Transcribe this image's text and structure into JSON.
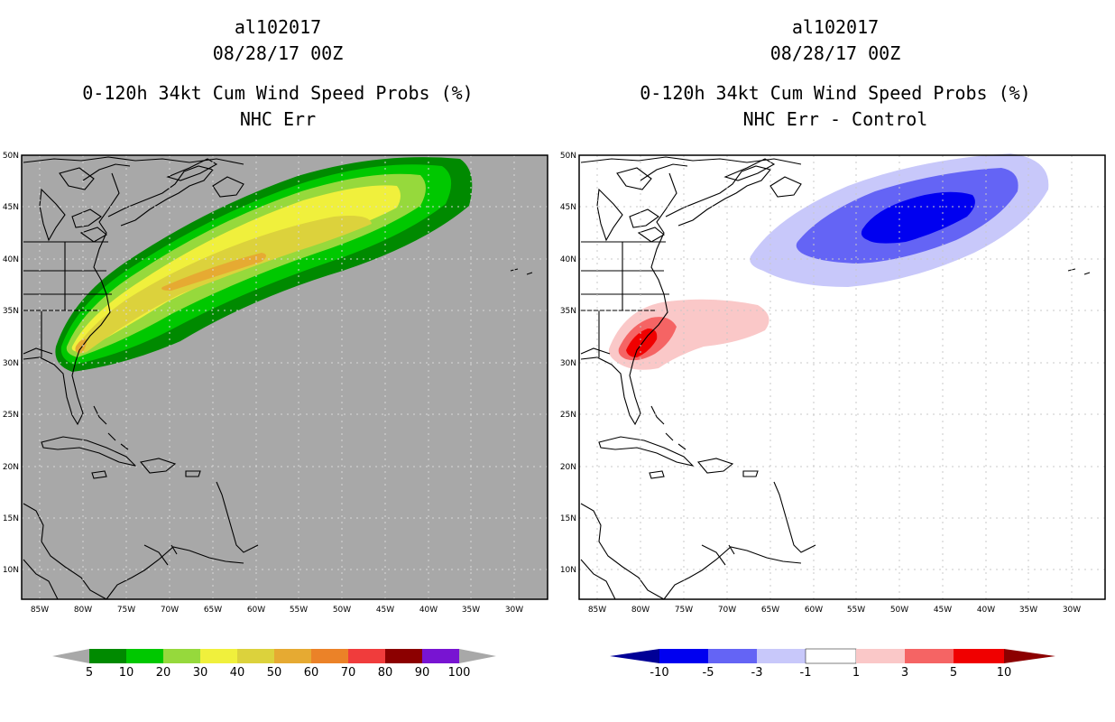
{
  "colors": {
    "land_gray": "#a8a8a8",
    "prob": [
      "#008a00",
      "#00c800",
      "#96d93c",
      "#f0f03c",
      "#dcd23c",
      "#e6aa32",
      "#eb8228",
      "#f03c3c",
      "#8c0000",
      "#7814d2"
    ],
    "diff_neg": [
      "#000096",
      "#0000f0",
      "#6464f5",
      "#c8c8fa"
    ],
    "diff_pos": [
      "#fac8c8",
      "#f56464",
      "#f00000",
      "#8c0000"
    ]
  },
  "left_panel": {
    "title_line1": "al102017",
    "title_line2": "08/28/17 00Z",
    "title_line3": "0-120h 34kt Cum Wind Speed Probs (%)",
    "title_line4": "NHC Err",
    "colorbar_labels": [
      "5",
      "10",
      "20",
      "30",
      "40",
      "50",
      "60",
      "70",
      "80",
      "90",
      "100"
    ]
  },
  "right_panel": {
    "title_line1": "al102017",
    "title_line2": "08/28/17 00Z",
    "title_line3": "0-120h 34kt Cum Wind Speed Probs (%)",
    "title_line4": "NHC Err - Control",
    "colorbar_labels": [
      "-10",
      "-5",
      "-3",
      "-1",
      "1",
      "3",
      "5",
      "10"
    ]
  },
  "map": {
    "lat_labels": [
      "50N",
      "45N",
      "40N",
      "35N",
      "30N",
      "25N",
      "20N",
      "15N",
      "10N"
    ],
    "lon_labels": [
      "85W",
      "80W",
      "75W",
      "70W",
      "65W",
      "60W",
      "55W",
      "50W",
      "45W",
      "40W",
      "35W",
      "30W"
    ]
  }
}
